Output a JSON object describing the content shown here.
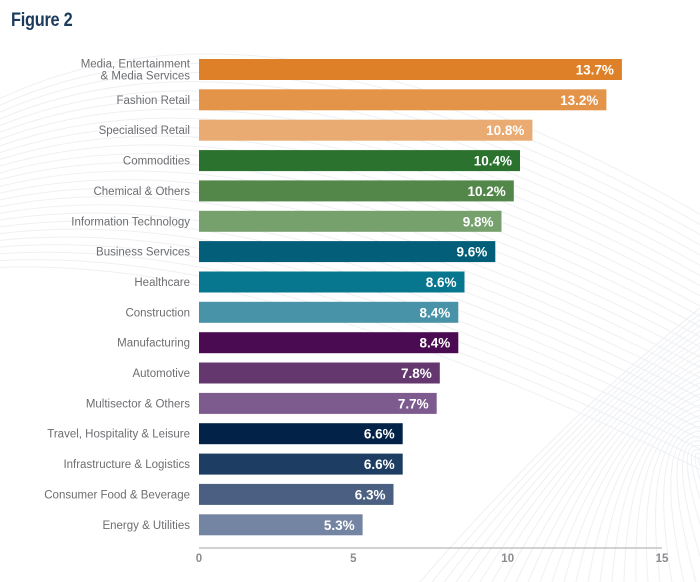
{
  "figure": {
    "title": "Figure 2"
  },
  "chart_data": {
    "type": "bar",
    "orientation": "horizontal",
    "title": "Figure 2",
    "xlabel": "",
    "ylabel": "",
    "xlim": [
      0,
      15
    ],
    "x_ticks": [
      0,
      5,
      10,
      15
    ],
    "grid": false,
    "legend": "none",
    "value_suffix": "%",
    "categories": [
      [
        "Media, Entertainment",
        "& Media Services"
      ],
      [
        "Fashion Retail"
      ],
      [
        "Specialised Retail"
      ],
      [
        "Commodities"
      ],
      [
        "Chemical & Others"
      ],
      [
        "Information Technology"
      ],
      [
        "Business Services"
      ],
      [
        "Healthcare"
      ],
      [
        "Construction"
      ],
      [
        "Manufacturing"
      ],
      [
        "Automotive"
      ],
      [
        "Multisector & Others"
      ],
      [
        "Travel, Hospitality & Leisure"
      ],
      [
        "Infrastructure & Logistics"
      ],
      [
        "Consumer Food & Beverage"
      ],
      [
        "Energy & Utilities"
      ]
    ],
    "values": [
      13.7,
      13.2,
      10.8,
      10.4,
      10.2,
      9.8,
      9.6,
      8.6,
      8.4,
      8.4,
      7.8,
      7.7,
      6.6,
      6.6,
      6.3,
      5.3
    ],
    "value_labels": [
      "13.7%",
      "13.2%",
      "10.8%",
      "10.4%",
      "10.2%",
      "9.8%",
      "9.6%",
      "8.6%",
      "8.4%",
      "8.4%",
      "7.8%",
      "7.7%",
      "6.6%",
      "6.6%",
      "6.3%",
      "5.3%"
    ],
    "colors": [
      "#de8027",
      "#e39449",
      "#e9ab72",
      "#2a722e",
      "#53874a",
      "#76a06c",
      "#035f79",
      "#07778f",
      "#4893a8",
      "#4b0b52",
      "#64386f",
      "#7d5b8f",
      "#022248",
      "#1e3d63",
      "#4a5f82",
      "#7484a3"
    ]
  },
  "colors": {
    "title": "#1b3a5c",
    "category_text": "#6d6e71",
    "axis": "#b6b7b9",
    "tick_text": "#8a8b8e",
    "value_text": "#ffffff"
  }
}
